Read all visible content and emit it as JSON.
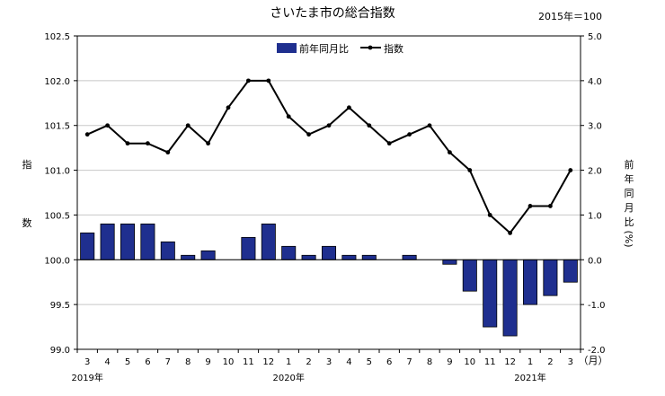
{
  "chart_data": {
    "type": "bar+line",
    "title": "さいたま市の総合指数",
    "base_note": "2015年＝100",
    "categories": [
      "3",
      "4",
      "5",
      "6",
      "7",
      "8",
      "9",
      "10",
      "11",
      "12",
      "1",
      "2",
      "3",
      "4",
      "5",
      "6",
      "7",
      "8",
      "9",
      "10",
      "11",
      "12",
      "1",
      "2",
      "3"
    ],
    "unit_label": "（月）",
    "year_labels": [
      {
        "label": "2019年",
        "at_index": 0
      },
      {
        "label": "2020年",
        "at_index": 10
      },
      {
        "label": "2021年",
        "at_index": 22
      }
    ],
    "left_axis": {
      "label_chars": [
        "指",
        "数"
      ],
      "ylim": [
        99.0,
        102.5
      ],
      "ticks": [
        "99.0",
        "99.5",
        "100.0",
        "100.5",
        "101.0",
        "101.5",
        "102.0",
        "102.5"
      ]
    },
    "right_axis": {
      "label_chars": [
        "前",
        "年",
        "同",
        "月",
        "比",
        "(%)"
      ],
      "ylim": [
        -2.0,
        5.0
      ],
      "ticks": [
        "-2.0",
        "-1.0",
        "0.0",
        "1.0",
        "2.0",
        "3.0",
        "4.0",
        "5.0"
      ]
    },
    "legend": {
      "position": "top-right",
      "bar_label": "前年同月比",
      "line_label": "指数"
    },
    "series": [
      {
        "name": "前年同月比",
        "kind": "bar",
        "axis": "right",
        "color": "#1f2f8f",
        "values": [
          0.6,
          0.8,
          0.8,
          0.8,
          0.4,
          0.1,
          0.2,
          0.0,
          0.5,
          0.8,
          0.3,
          0.1,
          0.3,
          0.1,
          0.1,
          0.0,
          0.1,
          0.0,
          -0.1,
          -0.7,
          -1.5,
          -1.7,
          -1.0,
          -0.8,
          -0.5
        ]
      },
      {
        "name": "指数",
        "kind": "line",
        "axis": "left",
        "color": "#000000",
        "values": [
          101.4,
          101.5,
          101.3,
          101.3,
          101.2,
          101.5,
          101.3,
          101.7,
          102.0,
          102.0,
          101.6,
          101.4,
          101.5,
          101.7,
          101.5,
          101.3,
          101.4,
          101.5,
          101.2,
          101.0,
          100.5,
          100.3,
          100.6,
          100.6,
          101.0
        ]
      }
    ]
  }
}
